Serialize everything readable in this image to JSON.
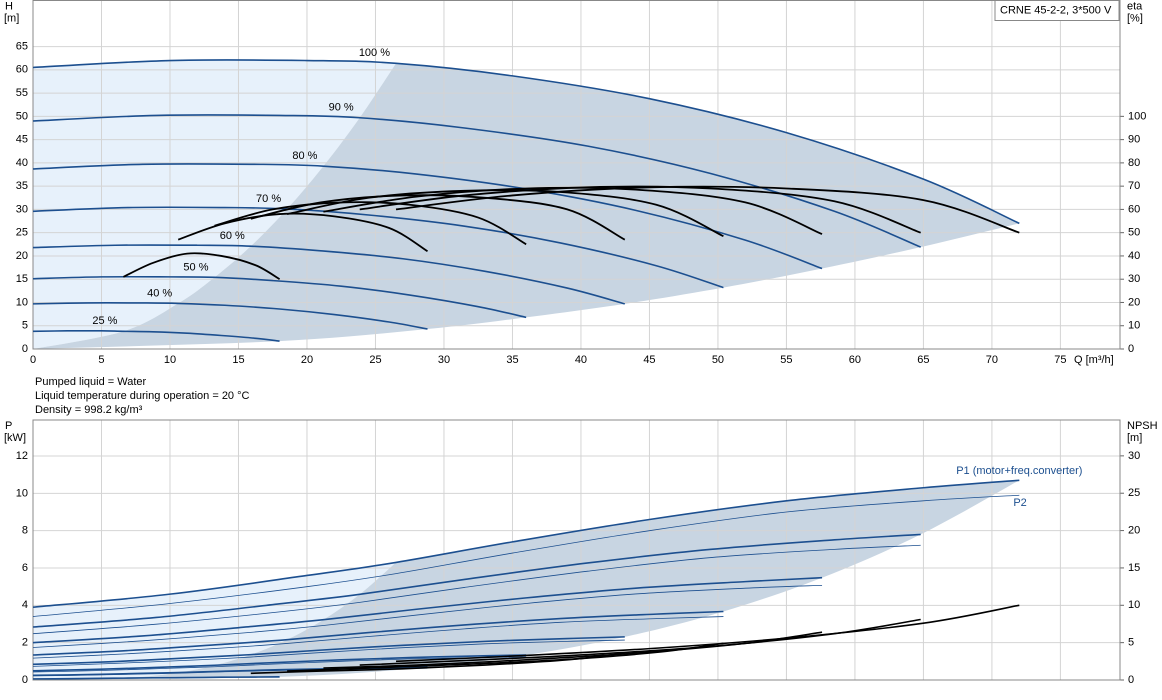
{
  "chart_data": [
    {
      "type": "line",
      "title": "CRNE 45-2-2, 3*500 V",
      "ylabel": "H",
      "yunit": "[m]",
      "y2label": "eta",
      "y2unit": "[%]",
      "xlabel": "Q [m³/h]",
      "notes": [
        "Pumped liquid = Water",
        "Liquid temperature during operation = 20 °C",
        "Density = 998.2 kg/m³"
      ],
      "xlim": [
        0,
        79.35
      ],
      "ylim": [
        0,
        74.9
      ],
      "y2lim": [
        0,
        149.8
      ],
      "grid": true,
      "xticks": [
        0,
        5,
        10,
        15,
        20,
        25,
        30,
        35,
        40,
        45,
        50,
        55,
        60,
        65,
        70,
        75
      ],
      "yticks": [
        0,
        5,
        10,
        15,
        20,
        25,
        30,
        35,
        40,
        45,
        50,
        55,
        60,
        65
      ],
      "y2ticks": [
        0,
        10,
        20,
        30,
        40,
        50,
        60,
        70,
        80,
        90,
        100
      ],
      "series": [
        {
          "name": "100 %",
          "color": "#1c4f8f",
          "width": 1.6,
          "x": [
            0,
            10,
            20,
            26.5,
            35,
            45,
            55,
            65,
            72
          ],
          "values": [
            60.5,
            62,
            62,
            61.4,
            58.7,
            53.8,
            46.5,
            36.5,
            27
          ]
        },
        {
          "name": "90 %",
          "color": "#1c4f8f",
          "width": 1.6,
          "x": [
            0,
            9,
            18,
            23.85,
            31.5,
            40.5,
            49.5,
            58.5,
            64.8
          ],
          "values": [
            49,
            50.2,
            50.2,
            49.7,
            47.5,
            43.6,
            37.7,
            29.6,
            21.9
          ]
        },
        {
          "name": "80 %",
          "color": "#1c4f8f",
          "width": 1.6,
          "x": [
            0,
            8,
            16,
            21.2,
            28,
            36,
            44,
            52,
            57.6
          ],
          "values": [
            38.7,
            39.7,
            39.7,
            39.3,
            37.6,
            34.4,
            29.8,
            23.4,
            17.3
          ]
        },
        {
          "name": "70 %",
          "color": "#1c4f8f",
          "width": 1.6,
          "x": [
            0,
            7,
            14,
            18.55,
            24.5,
            31.5,
            38.5,
            45.5,
            50.4
          ],
          "values": [
            29.6,
            30.4,
            30.4,
            30.1,
            28.8,
            26.4,
            22.8,
            17.9,
            13.2
          ]
        },
        {
          "name": "60 %",
          "color": "#1c4f8f",
          "width": 1.6,
          "x": [
            0,
            6,
            12,
            15.9,
            21,
            27,
            33,
            39,
            43.2
          ],
          "values": [
            21.8,
            22.3,
            22.3,
            22.1,
            21.1,
            19.4,
            16.7,
            13.1,
            9.7
          ]
        },
        {
          "name": "50 %",
          "color": "#1c4f8f",
          "width": 1.6,
          "x": [
            0,
            5,
            10,
            13.25,
            17.5,
            22.5,
            27.5,
            32.5,
            36
          ],
          "values": [
            15.1,
            15.5,
            15.5,
            15.4,
            14.7,
            13.5,
            11.6,
            9.1,
            6.8
          ]
        },
        {
          "name": "40 %",
          "color": "#1c4f8f",
          "width": 1.6,
          "x": [
            0,
            4,
            8,
            10.6,
            14,
            18,
            22,
            26,
            28.8
          ],
          "values": [
            9.7,
            9.9,
            9.9,
            9.8,
            9.4,
            8.6,
            7.4,
            5.8,
            4.3
          ]
        },
        {
          "name": "25 %",
          "color": "#1c4f8f",
          "width": 1.6,
          "x": [
            0,
            2.5,
            5,
            6.6,
            8.75,
            11.25,
            13.75,
            16.25,
            18
          ],
          "values": [
            3.8,
            3.9,
            3.9,
            3.8,
            3.7,
            3.4,
            2.9,
            2.3,
            1.7
          ]
        },
        {
          "color": "#000000",
          "width": 1.8,
          "axis": "y2",
          "x": [
            26.5,
            35,
            45,
            55,
            65,
            72
          ],
          "values": [
            60,
            66,
            69.5,
            69,
            64,
            50
          ]
        },
        {
          "color": "#000000",
          "width": 1.8,
          "axis": "y2",
          "x": [
            23.85,
            31.5,
            40.5,
            49.5,
            58.5,
            64.8
          ],
          "values": [
            60,
            66,
            69.5,
            69,
            63.5,
            50
          ]
        },
        {
          "color": "#000000",
          "width": 1.8,
          "axis": "y2",
          "x": [
            21.2,
            28,
            36,
            44,
            52,
            57.6
          ],
          "values": [
            59,
            65.5,
            69,
            68.5,
            63,
            49.4
          ]
        },
        {
          "color": "#000000",
          "width": 1.8,
          "axis": "y2",
          "x": [
            18.55,
            24.5,
            31.5,
            38.5,
            45.5,
            50.4
          ],
          "values": [
            58,
            65,
            68,
            67.5,
            62,
            48.5
          ]
        },
        {
          "color": "#000000",
          "width": 1.8,
          "axis": "y2",
          "x": [
            15.9,
            21,
            27,
            33,
            39,
            43.2
          ],
          "values": [
            56,
            63,
            66,
            65,
            60,
            47
          ]
        },
        {
          "color": "#000000",
          "width": 1.8,
          "axis": "y2",
          "x": [
            13.25,
            17.5,
            22.5,
            27.5,
            32.5,
            36
          ],
          "values": [
            53,
            60,
            63,
            62,
            56.5,
            45
          ]
        },
        {
          "color": "#000000",
          "width": 1.8,
          "axis": "y2",
          "x": [
            10.6,
            14,
            18,
            22,
            26,
            28.8
          ],
          "values": [
            47,
            54,
            58,
            57,
            52,
            42
          ]
        },
        {
          "color": "#000000",
          "width": 1.8,
          "axis": "y2",
          "x": [
            6.6,
            8.75,
            11.25,
            13.75,
            16.25,
            18
          ],
          "values": [
            31,
            37,
            41,
            40,
            36,
            30
          ]
        }
      ]
    },
    {
      "type": "line",
      "ylabel": "P",
      "yunit": "[kW]",
      "y2label": "NPSH",
      "y2unit": "[m]",
      "xlim": [
        0,
        79.35
      ],
      "ylim": [
        0,
        13.93
      ],
      "y2lim": [
        0,
        34.8
      ],
      "grid": true,
      "xtick_labels": false,
      "xticks": [
        0,
        5,
        10,
        15,
        20,
        25,
        30,
        35,
        40,
        45,
        50,
        55,
        60,
        65,
        70,
        75
      ],
      "yticks": [
        0,
        2,
        4,
        6,
        8,
        10,
        12
      ],
      "y2ticks": [
        0,
        5,
        10,
        15,
        20,
        25,
        30
      ],
      "series": [
        {
          "name": "P1 (motor+freq.converter)",
          "color": "#1c4f8f",
          "width": 1.6,
          "x": [
            0,
            10,
            20,
            26.5,
            35,
            45,
            55,
            65,
            72
          ],
          "values": [
            3.9,
            4.6,
            5.6,
            6.3,
            7.4,
            8.6,
            9.6,
            10.3,
            10.7
          ]
        },
        {
          "color": "#1c4f8f",
          "width": 1.6,
          "x": [
            0,
            9,
            18,
            23.85,
            31.5,
            40.5,
            49.5,
            58.5,
            64.8
          ],
          "values": [
            2.84,
            3.35,
            4.08,
            4.59,
            5.39,
            6.27,
            7,
            7.51,
            7.8
          ]
        },
        {
          "color": "#1c4f8f",
          "width": 1.6,
          "x": [
            0,
            8,
            16,
            21.2,
            28,
            36,
            44,
            52,
            57.6
          ],
          "values": [
            2,
            2.36,
            2.87,
            3.23,
            3.79,
            4.4,
            4.92,
            5.27,
            5.48
          ]
        },
        {
          "color": "#1c4f8f",
          "width": 1.6,
          "x": [
            0,
            7,
            14,
            18.55,
            24.5,
            31.5,
            38.5,
            45.5,
            50.4
          ],
          "values": [
            1.34,
            1.58,
            1.92,
            2.16,
            2.54,
            2.95,
            3.29,
            3.53,
            3.67
          ]
        },
        {
          "color": "#1c4f8f",
          "width": 1.6,
          "x": [
            0,
            6,
            12,
            15.9,
            21,
            27,
            33,
            39,
            43.2
          ],
          "values": [
            0.84,
            0.99,
            1.21,
            1.36,
            1.6,
            1.86,
            2.07,
            2.22,
            2.31
          ]
        },
        {
          "color": "#1c4f8f",
          "width": 1.6,
          "x": [
            0,
            5,
            10,
            13.25,
            17.5,
            22.5,
            27.5,
            32.5,
            36
          ],
          "values": [
            0.49,
            0.58,
            0.7,
            0.79,
            0.93,
            1.08,
            1.2,
            1.29,
            1.34
          ]
        },
        {
          "color": "#1c4f8f",
          "width": 1.6,
          "x": [
            0,
            4,
            8,
            10.6,
            14,
            18,
            22,
            26,
            28.8
          ],
          "values": [
            0.25,
            0.29,
            0.36,
            0.4,
            0.47,
            0.55,
            0.61,
            0.66,
            0.68
          ]
        },
        {
          "color": "#1c4f8f",
          "width": 1.6,
          "x": [
            0,
            2.5,
            5,
            6.6,
            8.75,
            11.25,
            13.75,
            16.25,
            18
          ],
          "values": [
            0.06,
            0.07,
            0.09,
            0.1,
            0.12,
            0.13,
            0.15,
            0.16,
            0.17
          ]
        },
        {
          "name": "P2",
          "color": "#1c4f8f",
          "width": 0.8,
          "x": [
            0,
            10,
            20,
            26.5,
            35,
            45,
            55,
            65,
            72
          ],
          "values": [
            3.4,
            4.1,
            5,
            5.7,
            6.8,
            8,
            9,
            9.6,
            9.9
          ]
        },
        {
          "color": "#1c4f8f",
          "width": 0.8,
          "x": [
            0,
            9,
            18,
            23.85,
            31.5,
            40.5,
            49.5,
            58.5,
            64.8
          ],
          "values": [
            2.48,
            2.99,
            3.65,
            4.16,
            4.96,
            5.83,
            6.56,
            7,
            7.22
          ]
        },
        {
          "color": "#1c4f8f",
          "width": 0.8,
          "x": [
            0,
            8,
            16,
            21.2,
            28,
            36,
            44,
            52,
            57.6
          ],
          "values": [
            1.74,
            2.1,
            2.56,
            2.92,
            3.48,
            4.1,
            4.61,
            4.92,
            5.07
          ]
        },
        {
          "color": "#1c4f8f",
          "width": 0.8,
          "x": [
            0,
            7,
            14,
            18.55,
            24.5,
            31.5,
            38.5,
            45.5,
            50.4
          ],
          "values": [
            1.17,
            1.41,
            1.72,
            1.96,
            2.33,
            2.74,
            3.09,
            3.29,
            3.4
          ]
        },
        {
          "color": "#1c4f8f",
          "width": 0.8,
          "x": [
            0,
            6,
            12,
            15.9,
            21,
            27,
            33,
            39,
            43.2
          ],
          "values": [
            0.73,
            0.89,
            1.08,
            1.23,
            1.47,
            1.73,
            1.94,
            2.07,
            2.14
          ]
        },
        {
          "color": "#1c4f8f",
          "width": 0.8,
          "x": [
            0,
            5,
            10,
            13.25,
            17.5,
            22.5,
            27.5,
            32.5,
            36
          ],
          "values": [
            0.43,
            0.51,
            0.63,
            0.71,
            0.85,
            1,
            1.13,
            1.2,
            1.24
          ]
        },
        {
          "color": "#1c4f8f",
          "width": 0.8,
          "x": [
            0,
            4,
            8,
            10.6,
            14,
            18,
            22,
            26,
            28.8
          ],
          "values": [
            0.22,
            0.26,
            0.32,
            0.36,
            0.44,
            0.51,
            0.58,
            0.61,
            0.63
          ]
        },
        {
          "color": "#1c4f8f",
          "width": 0.8,
          "x": [
            0,
            2.5,
            5,
            6.6,
            8.75,
            11.25,
            13.75,
            16.25,
            18
          ],
          "values": [
            0.05,
            0.06,
            0.08,
            0.09,
            0.11,
            0.13,
            0.14,
            0.15,
            0.15
          ]
        },
        {
          "color": "#000000",
          "width": 1.6,
          "axis": "y2",
          "x": [
            26.5,
            35,
            45,
            55,
            65,
            72
          ],
          "values": [
            2.5,
            3.2,
            4.2,
            5.6,
            7.6,
            10
          ]
        },
        {
          "color": "#000000",
          "width": 1.6,
          "axis": "y2",
          "x": [
            23.85,
            31.5,
            40.5,
            49.5,
            58.5,
            64.8
          ],
          "values": [
            2,
            2.6,
            3.4,
            4.5,
            6.2,
            8.1
          ]
        },
        {
          "color": "#000000",
          "width": 1.6,
          "axis": "y2",
          "x": [
            21.2,
            28,
            36,
            44,
            52,
            57.6
          ],
          "values": [
            1.6,
            2,
            2.7,
            3.6,
            4.9,
            6.4
          ]
        },
        {
          "color": "#000000",
          "width": 1.6,
          "axis": "y2",
          "x": [
            18.55,
            24.5,
            31.5,
            38.5,
            45.5,
            50.4
          ],
          "values": [
            1.2,
            1.6,
            2.1,
            2.7,
            3.7,
            4.9
          ]
        },
        {
          "color": "#000000",
          "width": 1.6,
          "axis": "y2",
          "x": [
            15.9,
            21,
            27,
            33,
            39,
            43.2
          ],
          "values": [
            0.9,
            1.2,
            1.5,
            2,
            2.7,
            3.6
          ]
        }
      ]
    }
  ]
}
